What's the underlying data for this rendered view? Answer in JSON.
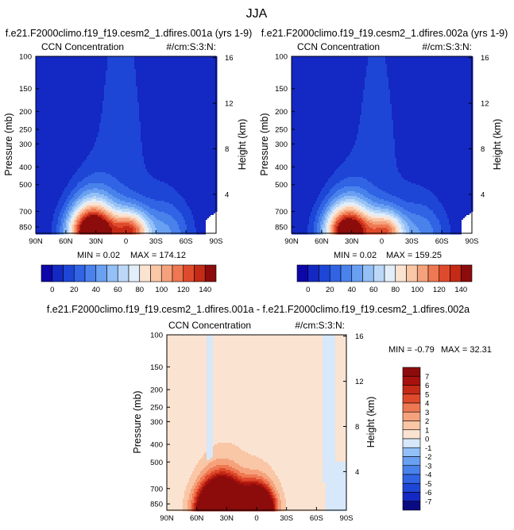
{
  "figure": {
    "title": "JJA",
    "panel_a_title": "f.e21.F2000climo.f19_f19.cesm2_1.dfires.001a (yrs 1-9)",
    "panel_b_title": "f.e21.F2000climo.f19_f19.cesm2_1.dfires.002a (yrs 1-9)",
    "panel_c_title": "f.e21.F2000climo.f19_f19.cesm2_1.dfires.001a - f.e21.F2000climo.f19_f19.cesm2_1.dfires.002a"
  },
  "chart_data": [
    {
      "type": "heatmap",
      "id": "a",
      "title": "CCN Concentration",
      "units": "#/cm:S:3:N:",
      "xlabel": "",
      "ylabel": "Pressure (mb)",
      "y2label": "Height (km)",
      "x_ticks": [
        "90N",
        "60N",
        "30N",
        "0",
        "30S",
        "60S",
        "90S"
      ],
      "x_tick_values": [
        90,
        60,
        30,
        0,
        -30,
        -60,
        -90
      ],
      "y_ticks": [
        "100",
        "150",
        "200",
        "250",
        "300",
        "400",
        "500",
        "700",
        "850"
      ],
      "y_tick_values": [
        100,
        150,
        200,
        250,
        300,
        400,
        500,
        700,
        850
      ],
      "ylim": [
        100,
        920
      ],
      "y2_ticks": [
        "16",
        "12",
        "8",
        "4"
      ],
      "y2_tick_values": [
        16,
        12,
        8,
        4
      ],
      "min_label": "MIN =  0.02",
      "max_label": "MAX = 174.12",
      "colorbar_labels": [
        "0",
        "20",
        "40",
        "60",
        "80",
        "100",
        "120",
        "140"
      ],
      "levels": [
        0,
        10,
        20,
        30,
        40,
        50,
        60,
        70,
        80,
        90,
        100,
        110,
        120,
        130,
        140
      ],
      "colors": [
        "#0d07a8",
        "#1428c4",
        "#1e46d6",
        "#3064e4",
        "#4a82ec",
        "#6aa0f2",
        "#93c0f6",
        "#bcd8f8",
        "#e2eefa",
        "#fbe3d2",
        "#f9c6a6",
        "#f5a27c",
        "#ee7852",
        "#e04a2c",
        "#c42a16",
        "#8c0c0c"
      ],
      "features": [
        {
          "lat": 33,
          "p": 900,
          "amp": 190,
          "sx": 24,
          "sp": 285
        },
        {
          "lat": -5,
          "p": 900,
          "amp": 110,
          "sx": 18,
          "sp": 215
        },
        {
          "lat": 5,
          "p": 300,
          "amp": 13,
          "sx": 35,
          "sp": 500
        },
        {
          "lat": -40,
          "p": 920,
          "amp": 40,
          "sx": 25,
          "sp": 330
        }
      ]
    },
    {
      "type": "heatmap",
      "id": "b",
      "title": "CCN Concentration",
      "units": "#/cm:S:3:N:",
      "xlabel": "",
      "ylabel": "Pressure (mb)",
      "y2label": "Height (km)",
      "x_ticks": [
        "90N",
        "60N",
        "30N",
        "0",
        "30S",
        "60S",
        "90S"
      ],
      "x_tick_values": [
        90,
        60,
        30,
        0,
        -30,
        -60,
        -90
      ],
      "y_ticks": [
        "100",
        "150",
        "200",
        "250",
        "300",
        "400",
        "500",
        "700",
        "850"
      ],
      "y_tick_values": [
        100,
        150,
        200,
        250,
        300,
        400,
        500,
        700,
        850
      ],
      "ylim": [
        100,
        920
      ],
      "y2_ticks": [
        "16",
        "12",
        "8",
        "4"
      ],
      "y2_tick_values": [
        16,
        12,
        8,
        4
      ],
      "min_label": "MIN =  0.02",
      "max_label": "MAX = 159.25",
      "colorbar_labels": [
        "0",
        "20",
        "40",
        "60",
        "80",
        "100",
        "120",
        "140"
      ],
      "levels": [
        0,
        10,
        20,
        30,
        40,
        50,
        60,
        70,
        80,
        90,
        100,
        110,
        120,
        130,
        140
      ],
      "colors": [
        "#0d07a8",
        "#1428c4",
        "#1e46d6",
        "#3064e4",
        "#4a82ec",
        "#6aa0f2",
        "#93c0f6",
        "#bcd8f8",
        "#e2eefa",
        "#fbe3d2",
        "#f9c6a6",
        "#f5a27c",
        "#ee7852",
        "#e04a2c",
        "#c42a16",
        "#8c0c0c"
      ],
      "features": [
        {
          "lat": 33,
          "p": 900,
          "amp": 172,
          "sx": 24,
          "sp": 280
        },
        {
          "lat": -5,
          "p": 900,
          "amp": 100,
          "sx": 18,
          "sp": 210
        },
        {
          "lat": 5,
          "p": 300,
          "amp": 12,
          "sx": 35,
          "sp": 500
        },
        {
          "lat": -40,
          "p": 920,
          "amp": 36,
          "sx": 25,
          "sp": 330
        }
      ]
    },
    {
      "type": "heatmap",
      "id": "diff",
      "title": "CCN Concentration",
      "units": "#/cm:S:3:N:",
      "xlabel": "",
      "ylabel": "Pressure (mb)",
      "y2label": "Height (km)",
      "x_ticks": [
        "90N",
        "60N",
        "30N",
        "0",
        "30S",
        "60S",
        "90S"
      ],
      "x_tick_values": [
        90,
        60,
        30,
        0,
        -30,
        -60,
        -90
      ],
      "y_ticks": [
        "100",
        "150",
        "200",
        "250",
        "300",
        "400",
        "500",
        "700",
        "850"
      ],
      "y_tick_values": [
        100,
        150,
        200,
        250,
        300,
        400,
        500,
        700,
        850
      ],
      "ylim": [
        100,
        920
      ],
      "y2_ticks": [
        "16",
        "12",
        "8",
        "4"
      ],
      "y2_tick_values": [
        16,
        12,
        8,
        4
      ],
      "min_label": "MIN = -0.79",
      "max_label": "MAX = 32.31",
      "colorbar_labels": [
        "7",
        "6",
        "5",
        "4",
        "3",
        "2",
        "1",
        "0",
        "-1",
        "-2",
        "-3",
        "-4",
        "-5",
        "-6",
        "-7"
      ],
      "levels": [
        -7,
        -6,
        -5,
        -4,
        -3,
        -2,
        -1,
        0,
        1,
        2,
        3,
        4,
        5,
        6,
        7
      ],
      "colors": [
        "#0a0a82",
        "#1428c4",
        "#1e46d6",
        "#3064e4",
        "#4a82ec",
        "#6aa0f2",
        "#93c0f6",
        "#d6e8fa",
        "#fbe3d2",
        "#f9c6a6",
        "#f5a27c",
        "#ee7852",
        "#e04a2c",
        "#c42a16",
        "#a8120e",
        "#8c0c0c"
      ],
      "features": [
        {
          "lat": 35,
          "p": 900,
          "amp": 30,
          "sx": 20,
          "sp": 240
        },
        {
          "lat": 0,
          "p": 900,
          "amp": 22,
          "sx": 15,
          "sp": 200
        },
        {
          "lat": 10,
          "p": 500,
          "amp": 0.75,
          "sx": 80,
          "sp": 1200
        }
      ]
    }
  ]
}
